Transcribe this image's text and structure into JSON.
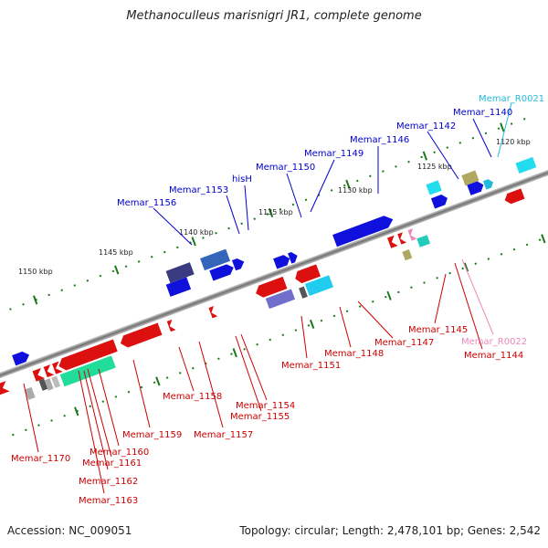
{
  "title": "Methanoculleus marisnigri JR1, complete genome",
  "accession": "Accession: NC_009051",
  "topology": "Topology: circular; Length: 2,478,101 bp; Genes: 2,542",
  "scale_labels": [
    "1150 kbp",
    "1145 kbp",
    "1140 kbp",
    "1135 kbp",
    "1130 kbp",
    "1125 kbp",
    "1120 kbp"
  ],
  "upper_labels": [
    {
      "text": "Memar_1156",
      "color": "#0000cc"
    },
    {
      "text": "Memar_1153",
      "color": "#0000cc"
    },
    {
      "text": "hisH",
      "color": "#0000cc"
    },
    {
      "text": "Memar_1150",
      "color": "#0000cc"
    },
    {
      "text": "Memar_1149",
      "color": "#0000cc"
    },
    {
      "text": "Memar_1146",
      "color": "#0000cc"
    },
    {
      "text": "Memar_1142",
      "color": "#0000cc"
    },
    {
      "text": "Memar_1140",
      "color": "#0000cc"
    },
    {
      "text": "Memar_R0021",
      "color": "#22bbdd"
    }
  ],
  "lower_labels": [
    {
      "text": "Memar_1170",
      "color": "#cc0000"
    },
    {
      "text": "Memar_1160",
      "color": "#cc0000"
    },
    {
      "text": "Memar_1161",
      "color": "#cc0000"
    },
    {
      "text": "Memar_1162",
      "color": "#cc0000"
    },
    {
      "text": "Memar_1163",
      "color": "#cc0000"
    },
    {
      "text": "Memar_1159",
      "color": "#cc0000"
    },
    {
      "text": "Memar_1158",
      "color": "#cc0000"
    },
    {
      "text": "Memar_1157",
      "color": "#cc0000"
    },
    {
      "text": "Memar_1154",
      "color": "#cc0000"
    },
    {
      "text": "Memar_1155",
      "color": "#cc0000"
    },
    {
      "text": "Memar_1151",
      "color": "#cc0000"
    },
    {
      "text": "Memar_1148",
      "color": "#cc0000"
    },
    {
      "text": "Memar_1147",
      "color": "#cc0000"
    },
    {
      "text": "Memar_1145",
      "color": "#cc0000"
    },
    {
      "text": "Memar_R0022",
      "color": "#ee88bb"
    },
    {
      "text": "Memar_1144",
      "color": "#cc0000"
    }
  ]
}
